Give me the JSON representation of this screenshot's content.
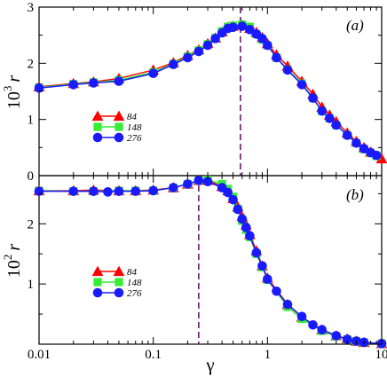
{
  "chart_data": [
    {
      "type": "line",
      "panel_label": "(a)",
      "ylabel": {
        "prefix": "10",
        "exp": "3",
        "var": "r"
      },
      "x_scale": "log",
      "xlim": [
        0.01,
        10
      ],
      "ylim": [
        0,
        3
      ],
      "yticks": [
        "0",
        "1",
        "2",
        "3"
      ],
      "vline_x": 0.58,
      "legend_placement": "left-middle",
      "series": [
        {
          "name": "84",
          "color": "#ff0000",
          "marker": "triangle",
          "x": [
            0.01,
            0.02,
            0.03,
            0.05,
            0.1,
            0.15,
            0.2,
            0.25,
            0.3,
            0.35,
            0.4,
            0.45,
            0.5,
            0.6,
            0.7,
            0.8,
            0.9,
            1.0,
            1.2,
            1.5,
            2.0,
            2.5,
            3.0,
            3.5,
            4.0,
            5.0,
            6.0,
            7.0,
            8.0,
            10.0
          ],
          "y": [
            1.58,
            1.64,
            1.67,
            1.73,
            1.88,
            2.01,
            2.14,
            2.24,
            2.35,
            2.45,
            2.56,
            2.64,
            2.66,
            2.68,
            2.62,
            2.55,
            2.46,
            2.35,
            2.15,
            1.95,
            1.68,
            1.45,
            1.22,
            1.08,
            0.96,
            0.76,
            0.61,
            0.5,
            0.42,
            0.3
          ]
        },
        {
          "name": "148",
          "color": "#33ee33",
          "marker": "square",
          "x": [
            0.01,
            0.02,
            0.03,
            0.05,
            0.1,
            0.15,
            0.2,
            0.25,
            0.3,
            0.35,
            0.4,
            0.45,
            0.5,
            0.6,
            0.7,
            0.8,
            0.9,
            1.0,
            1.2,
            1.5,
            2.0,
            2.5,
            3.0,
            3.5,
            4.0,
            5.0,
            6.0,
            7.0,
            8.0,
            9.0
          ],
          "y": [
            1.57,
            1.63,
            1.66,
            1.7,
            1.84,
            1.99,
            2.12,
            2.23,
            2.34,
            2.45,
            2.57,
            2.65,
            2.67,
            2.69,
            2.65,
            2.52,
            2.42,
            2.32,
            2.1,
            1.89,
            1.64,
            1.38,
            1.15,
            1.02,
            0.9,
            0.72,
            0.58,
            0.47,
            0.4,
            0.35
          ]
        },
        {
          "name": "276",
          "color": "#1a1aff",
          "marker": "circle",
          "x": [
            0.01,
            0.02,
            0.03,
            0.05,
            0.1,
            0.15,
            0.2,
            0.25,
            0.3,
            0.35,
            0.4,
            0.45,
            0.5,
            0.6,
            0.7,
            0.8,
            0.9,
            1.0,
            1.2,
            1.5,
            2.0,
            2.5,
            3.0,
            3.5,
            4.0,
            5.0,
            6.0,
            7.0,
            8.0,
            9.0
          ],
          "y": [
            1.56,
            1.62,
            1.65,
            1.68,
            1.82,
            1.98,
            2.1,
            2.21,
            2.32,
            2.44,
            2.54,
            2.62,
            2.64,
            2.66,
            2.6,
            2.52,
            2.44,
            2.32,
            2.1,
            1.88,
            1.62,
            1.38,
            1.15,
            1.02,
            0.9,
            0.72,
            0.58,
            0.48,
            0.41,
            0.36
          ]
        }
      ]
    },
    {
      "type": "line",
      "panel_label": "(b)",
      "ylabel": {
        "prefix": "10",
        "exp": "2",
        "var": "r"
      },
      "x_scale": "log",
      "xlim": [
        0.01,
        10
      ],
      "ylim": [
        0,
        2.8
      ],
      "yticks": [
        "1",
        "2"
      ],
      "xlabel": "γ",
      "xticks": [
        "0.01",
        "0.1",
        "1",
        "10"
      ],
      "vline_x": 0.25,
      "legend_placement": "left-middle",
      "series": [
        {
          "name": "84",
          "color": "#ff0000",
          "marker": "triangle",
          "x": [
            0.01,
            0.02,
            0.03,
            0.05,
            0.07,
            0.1,
            0.15,
            0.2,
            0.25,
            0.3,
            0.4,
            0.45,
            0.5,
            0.55,
            0.6,
            0.65,
            0.7,
            0.8,
            0.9,
            1.0,
            1.5,
            2.0,
            3.0,
            4.0,
            5.0,
            6.0,
            7.0,
            10.0
          ],
          "y": [
            2.55,
            2.55,
            2.56,
            2.55,
            2.55,
            2.56,
            2.6,
            2.66,
            2.72,
            2.72,
            2.62,
            2.55,
            2.42,
            2.28,
            2.12,
            1.98,
            1.82,
            1.55,
            1.3,
            1.1,
            0.66,
            0.45,
            0.24,
            0.14,
            0.09,
            0.05,
            0.03,
            0.01
          ]
        },
        {
          "name": "148",
          "color": "#33ee33",
          "marker": "square",
          "x": [
            0.01,
            0.02,
            0.03,
            0.05,
            0.07,
            0.1,
            0.15,
            0.2,
            0.25,
            0.3,
            0.4,
            0.45,
            0.5,
            0.55,
            0.6,
            0.65,
            0.7,
            0.8,
            0.9,
            1.0,
            1.5,
            2.0,
            3.0,
            4.0,
            5.0,
            6.0,
            7.0,
            10.0
          ],
          "y": [
            2.55,
            2.54,
            2.54,
            2.55,
            2.55,
            2.55,
            2.6,
            2.66,
            2.72,
            2.73,
            2.66,
            2.58,
            2.45,
            2.25,
            2.05,
            1.9,
            1.78,
            1.5,
            1.28,
            1.07,
            0.62,
            0.42,
            0.22,
            0.13,
            0.08,
            0.05,
            0.03,
            0.01
          ]
        },
        {
          "name": "276",
          "color": "#1a1aff",
          "marker": "circle",
          "x": [
            0.01,
            0.02,
            0.03,
            0.04,
            0.05,
            0.07,
            0.1,
            0.15,
            0.2,
            0.25,
            0.3,
            0.4,
            0.45,
            0.5,
            0.55,
            0.6,
            0.65,
            0.7,
            0.8,
            0.9,
            1.0,
            1.2,
            1.5,
            2.0,
            2.5,
            3.0,
            4.0,
            5.0,
            6.0,
            7.0,
            10.0
          ],
          "y": [
            2.54,
            2.54,
            2.54,
            2.53,
            2.54,
            2.54,
            2.55,
            2.6,
            2.66,
            2.72,
            2.7,
            2.6,
            2.52,
            2.4,
            2.24,
            2.08,
            1.94,
            1.8,
            1.52,
            1.3,
            1.08,
            0.88,
            0.66,
            0.46,
            0.32,
            0.24,
            0.14,
            0.08,
            0.05,
            0.03,
            0.01
          ]
        }
      ]
    }
  ]
}
